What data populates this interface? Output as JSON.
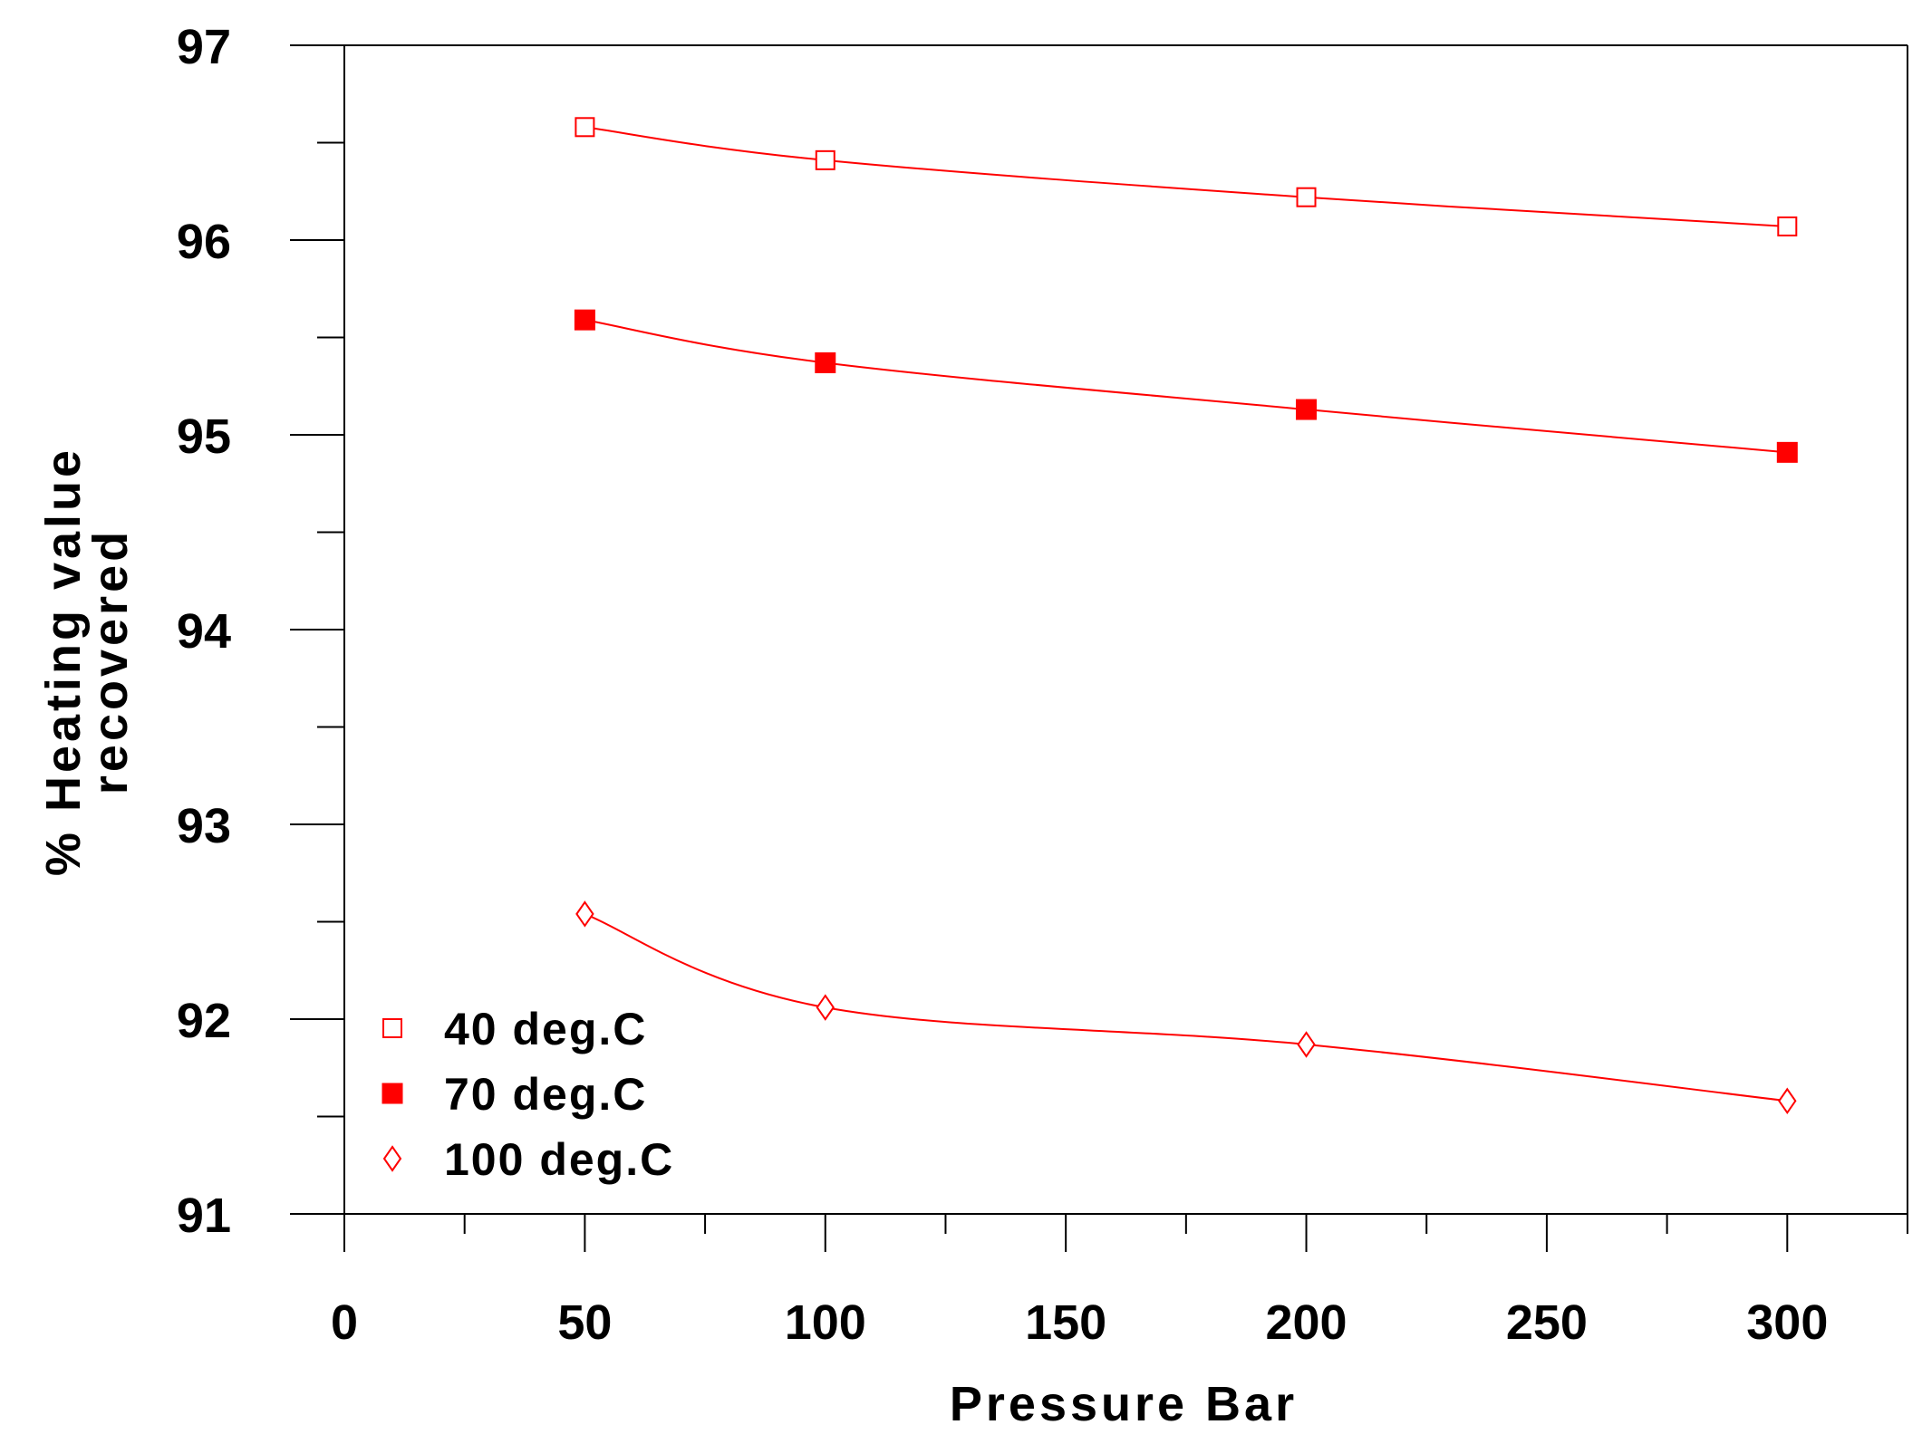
{
  "chart_data": {
    "type": "line",
    "title": "",
    "xlabel": "Pressure Bar",
    "ylabel_lines": [
      "% Heating value",
      "recovered"
    ],
    "xlim": [
      0,
      325
    ],
    "ylim": [
      91,
      97
    ],
    "x_ticks": [
      0,
      50,
      100,
      150,
      200,
      250,
      300
    ],
    "x_tick_labels": [
      "0",
      "50",
      "100",
      "150",
      "200",
      "250",
      "300"
    ],
    "x_minor_ticks": [
      25,
      75,
      125,
      175,
      225,
      275,
      325
    ],
    "y_ticks": [
      91,
      92,
      93,
      94,
      95,
      96,
      97
    ],
    "y_tick_labels": [
      "91",
      "92",
      "93",
      "94",
      "95",
      "96",
      "97"
    ],
    "y_minor_ticks": [
      91.5,
      92.5,
      93.5,
      94.5,
      95.5,
      96.5
    ],
    "grid": false,
    "legend_position": "bottom-left",
    "color": "#ff0000",
    "x": [
      50,
      100,
      200,
      300
    ],
    "series": [
      {
        "name": "40 deg.C",
        "marker": "open-square",
        "values": [
          96.58,
          96.41,
          96.22,
          96.07
        ]
      },
      {
        "name": "70 deg.C",
        "marker": "filled-square",
        "values": [
          95.59,
          95.37,
          95.13,
          94.91
        ]
      },
      {
        "name": "100 deg.C",
        "marker": "open-diamond",
        "values": [
          92.54,
          92.06,
          91.87,
          91.58
        ]
      }
    ]
  }
}
